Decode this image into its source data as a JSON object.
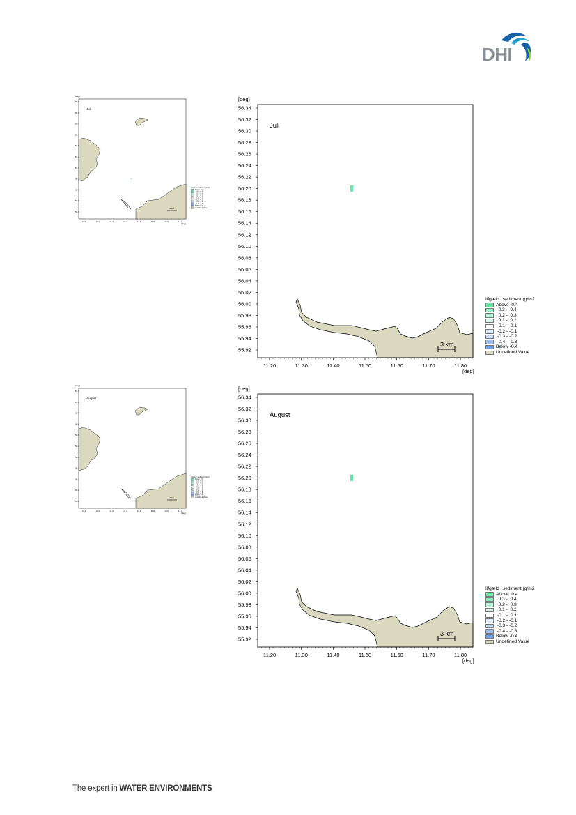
{
  "brand": {
    "name": "DHI",
    "colors": {
      "text": "#8a8f97",
      "wave_dark": "#1560a8",
      "wave_mid": "#27a0cf",
      "wave_light": "#7ecf3f"
    }
  },
  "footer": {
    "prefix": "The expert in ",
    "emphasis": "WATER ENVIRONMENTS"
  },
  "legend": {
    "title": "Ilfgæld i sediment (g/m2",
    "items": [
      {
        "label": "Above  0.4",
        "color": "#63e6a6"
      },
      {
        "label": "  0.3 -  0.4",
        "color": "#8fedc2"
      },
      {
        "label": "  0.2 -  0.3",
        "color": "#b5f3d7"
      },
      {
        "label": "  0.1 -  0.2",
        "color": "#d9f9eb"
      },
      {
        "label": " -0.1 -  0.1",
        "color": "#ffffff"
      },
      {
        "label": " -0.2 - -0.1",
        "color": "#dde9fb"
      },
      {
        "label": " -0.3 - -0.2",
        "color": "#bdd4f7"
      },
      {
        "label": " -0.4 - -0.3",
        "color": "#9cbef3"
      },
      {
        "label": "Below -0.4",
        "color": "#6aa1ee"
      },
      {
        "label": "Undefined Value",
        "color": "#dbd8c0"
      }
    ]
  },
  "colors": {
    "land": "#dbd8c0",
    "patch": "#63e6a6"
  },
  "maps": [
    {
      "month": "Juli",
      "axis_unit": "[deg]",
      "y_ticks": [
        "56.34",
        "56.32",
        "56.30",
        "56.28",
        "56.26",
        "56.24",
        "56.22",
        "56.20",
        "56.18",
        "56.16",
        "56.14",
        "56.12",
        "56.10",
        "56.08",
        "56.06",
        "56.04",
        "56.02",
        "56.00",
        "55.98",
        "55.96",
        "55.94",
        "55.92"
      ],
      "x_ticks": [
        "11.20",
        "11.30",
        "11.40",
        "11.50",
        "11.60",
        "11.70",
        "11.80"
      ],
      "scale_bar": "3 km"
    },
    {
      "month": "August",
      "axis_unit": "[deg]",
      "y_ticks": [
        "56.34",
        "56.32",
        "56.30",
        "56.28",
        "56.26",
        "56.24",
        "56.22",
        "56.20",
        "56.18",
        "56.16",
        "56.14",
        "56.12",
        "56.10",
        "56.08",
        "56.06",
        "56.04",
        "56.02",
        "56.00",
        "55.98",
        "55.96",
        "55.94",
        "55.92"
      ],
      "x_ticks": [
        "11.20",
        "11.30",
        "11.40",
        "11.50",
        "11.60",
        "11.70",
        "11.80"
      ],
      "scale_bar": "3 km"
    }
  ],
  "overview_maps": [
    {
      "month": "Juli",
      "unit": "[deg]",
      "scale_bar": "10 km",
      "y_ticks": [
        "56.9",
        "56.8",
        "56.7",
        "56.6",
        "56.5",
        "56.4",
        "56.3",
        "56.2",
        "56.1",
        "56.0",
        "55.9"
      ],
      "x_ticks": [
        "10.8",
        "11.0",
        "11.2",
        "11.4",
        "11.6",
        "11.8",
        "12.0",
        "12.2"
      ]
    },
    {
      "month": "August",
      "unit": "[deg]",
      "scale_bar": "10 km",
      "y_ticks": [
        "56.9",
        "56.8",
        "56.7",
        "56.6",
        "56.5",
        "56.4",
        "56.3",
        "56.2",
        "56.1",
        "56.0",
        "55.9"
      ],
      "x_ticks": [
        "10.8",
        "11.0",
        "11.2",
        "11.4",
        "11.6",
        "11.8",
        "12.0",
        "12.2"
      ]
    }
  ]
}
